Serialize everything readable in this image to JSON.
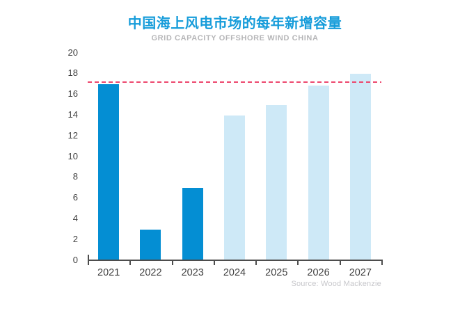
{
  "header": {
    "title": "中国海上风电市场的每年新增容量",
    "subtitle": "GRID CAPACITY OFFSHORE WIND CHINA",
    "title_color": "#169cda",
    "subtitle_color": "#b5b5b7"
  },
  "chart_data": {
    "type": "bar",
    "title": "中国海上风电市场的每年新增容量",
    "subtitle": "GRID CAPACITY OFFSHORE WIND CHINA",
    "categories": [
      "2021",
      "2022",
      "2023",
      "2024",
      "2025",
      "2026",
      "2027"
    ],
    "values": [
      16.9,
      2.9,
      6.9,
      13.9,
      14.9,
      16.8,
      17.9
    ],
    "bar_styles": [
      "actual",
      "actual",
      "actual",
      "forecast",
      "forecast",
      "forecast",
      "forecast"
    ],
    "reference_line_value": 17.1,
    "y_ticks": [
      0,
      2,
      4,
      6,
      8,
      10,
      12,
      14,
      16,
      18,
      20
    ],
    "ylim": [
      0,
      20
    ],
    "xlabel": "",
    "ylabel": "",
    "grid": false,
    "legend": false,
    "colors": {
      "actual": "#048ed3",
      "forecast": "#cee9f7",
      "reference_line": "#ed476d",
      "axis": "#4d4d4d",
      "tick_label": "#414141"
    }
  },
  "footer": {
    "source": "Source: Wood Mackenzie"
  }
}
